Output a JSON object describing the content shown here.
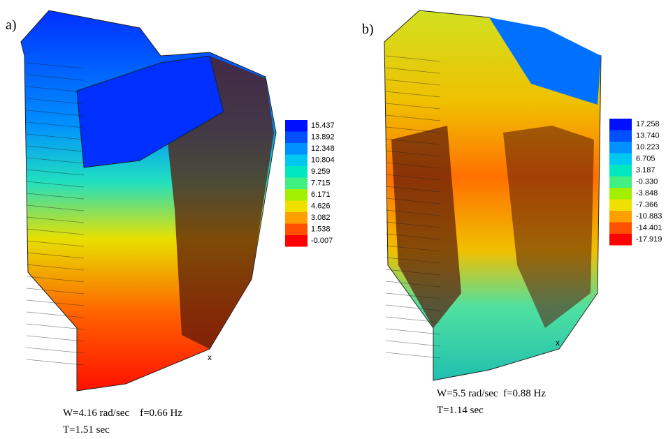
{
  "panels": [
    {
      "label": "a)",
      "legend": [
        {
          "text": "15.437",
          "color": "#0010ff"
        },
        {
          "text": "13.892",
          "color": "#0050ff"
        },
        {
          "text": "12.348",
          "color": "#0090ff"
        },
        {
          "text": "10.804",
          "color": "#00c8f0"
        },
        {
          "text": "9.259",
          "color": "#00e8c0"
        },
        {
          "text": "7.715",
          "color": "#40f080"
        },
        {
          "text": "6.171",
          "color": "#a0f000"
        },
        {
          "text": "4.626",
          "color": "#f0e000"
        },
        {
          "text": "3.082",
          "color": "#ffa000"
        },
        {
          "text": "1.538",
          "color": "#ff5000"
        },
        {
          "text": "-0.007",
          "color": "#ff0000"
        }
      ],
      "caption": [
        "W=4.16 rad/sec    f=0.66 Hz",
        "T=1.51 sec"
      ]
    },
    {
      "label": "b)",
      "legend": [
        {
          "text": "17.258",
          "color": "#0010ff"
        },
        {
          "text": "13.740",
          "color": "#0050ff"
        },
        {
          "text": "10.223",
          "color": "#0090ff"
        },
        {
          "text": "6.705",
          "color": "#00c8f0"
        },
        {
          "text": "3.187",
          "color": "#00e8c0"
        },
        {
          "text": "-0.330",
          "color": "#40f080"
        },
        {
          "text": "-3.848",
          "color": "#a0f000"
        },
        {
          "text": "-7.366",
          "color": "#f0e000"
        },
        {
          "text": "-10.883",
          "color": "#ffa000"
        },
        {
          "text": "-14.401",
          "color": "#ff5000"
        },
        {
          "text": "-17.919",
          "color": "#ff0000"
        }
      ],
      "caption": [
        "W=5.5 rad/sec  f=0.88 Hz",
        "T=1.14 sec"
      ]
    }
  ]
}
